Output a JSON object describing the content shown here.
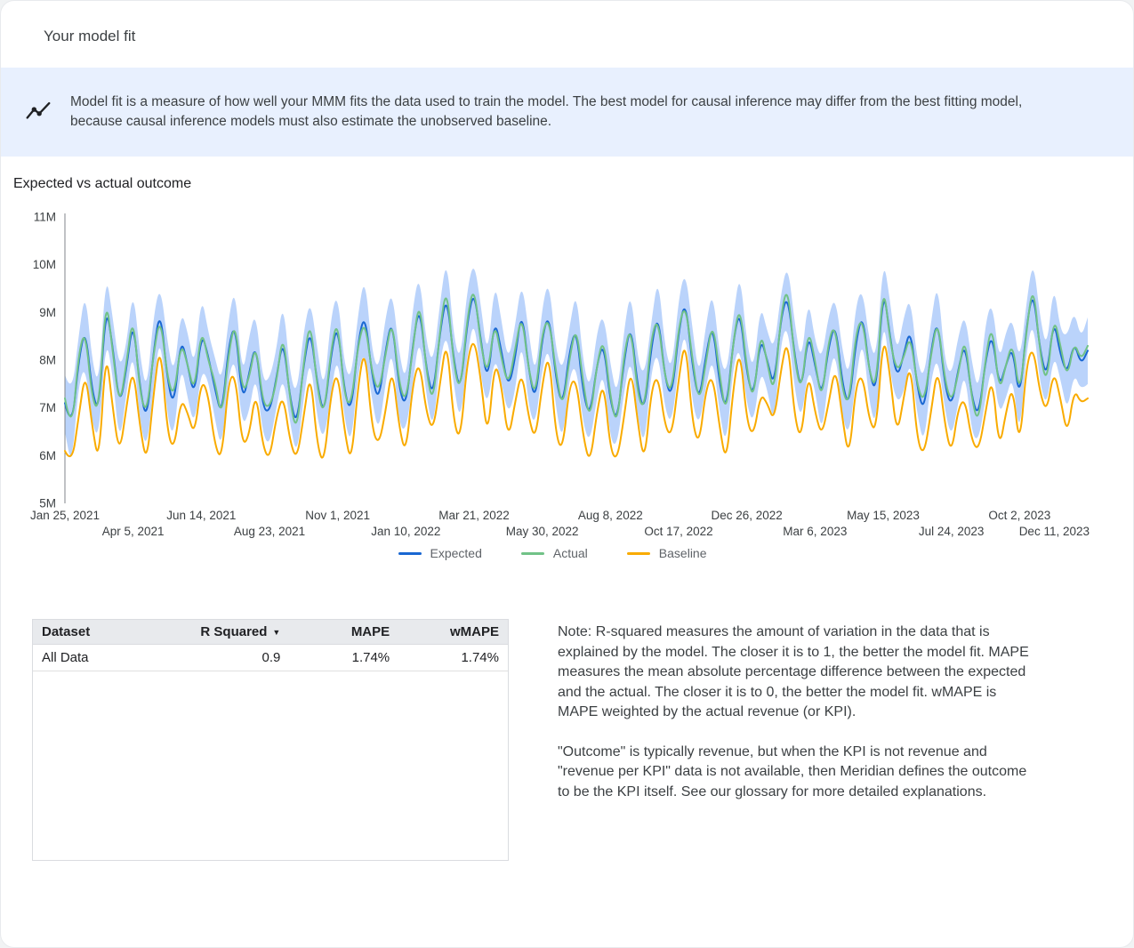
{
  "page": {
    "title": "Your model fit",
    "banner": {
      "icon": "insights-icon",
      "text": "Model fit is a measure of how well your MMM fits the data used to train the model. The best model for causal inference may differ from the best fitting model, because causal inference models must also estimate the unobserved baseline."
    },
    "section_title": "Expected vs actual outcome"
  },
  "chart_data": {
    "type": "line",
    "title": "Expected vs actual outcome",
    "ylim": [
      5,
      11
    ],
    "unit": "M",
    "legend_position": "bottom-center",
    "grid": false,
    "y_ticks": [
      {
        "value": 5,
        "label": "5M"
      },
      {
        "value": 6,
        "label": "6M"
      },
      {
        "value": 7,
        "label": "7M"
      },
      {
        "value": 8,
        "label": "8M"
      },
      {
        "value": 9,
        "label": "9M"
      },
      {
        "value": 10,
        "label": "10M"
      },
      {
        "value": 11,
        "label": "11M"
      }
    ],
    "x_ticks": [
      {
        "label": "Jan 25, 2021",
        "index": 0
      },
      {
        "label": "Apr 5, 2021",
        "index": 10
      },
      {
        "label": "Jun 14, 2021",
        "index": 20
      },
      {
        "label": "Aug 23, 2021",
        "index": 30
      },
      {
        "label": "Nov 1, 2021",
        "index": 40
      },
      {
        "label": "Jan 10, 2022",
        "index": 50
      },
      {
        "label": "Mar 21, 2022",
        "index": 60
      },
      {
        "label": "May 30, 2022",
        "index": 70
      },
      {
        "label": "Aug 8, 2022",
        "index": 80
      },
      {
        "label": "Oct 17, 2022",
        "index": 90
      },
      {
        "label": "Dec 26, 2022",
        "index": 100
      },
      {
        "label": "Mar 6, 2023",
        "index": 110
      },
      {
        "label": "May 15, 2023",
        "index": 120
      },
      {
        "label": "Jul 24, 2023",
        "index": 130
      },
      {
        "label": "Oct 2, 2023",
        "index": 140
      },
      {
        "label": "Dec 11, 2023",
        "index": 150
      }
    ],
    "series": [
      {
        "name": "Expected",
        "color": "#1967d2",
        "values": [
          7.1,
          6.5,
          8.0,
          8.7,
          7.3,
          6.9,
          9.2,
          8.3,
          7.0,
          7.8,
          8.9,
          7.4,
          6.7,
          8.2,
          9.1,
          7.6,
          7.0,
          8.5,
          7.9,
          7.2,
          8.6,
          8.1,
          7.4,
          6.8,
          8.3,
          8.8,
          7.1,
          7.7,
          8.4,
          7.0,
          6.9,
          7.6,
          8.5,
          7.2,
          6.6,
          7.9,
          8.7,
          7.5,
          6.8,
          8.1,
          8.8,
          7.3,
          6.9,
          8.4,
          9.0,
          7.7,
          7.1,
          8.2,
          8.9,
          7.4,
          7.0,
          8.3,
          9.2,
          7.8,
          7.2,
          8.6,
          9.4,
          8.0,
          7.3,
          8.8,
          9.5,
          8.4,
          7.5,
          8.9,
          8.2,
          7.4,
          8.0,
          9.1,
          7.8,
          7.1,
          8.5,
          9.0,
          7.6,
          7.0,
          8.2,
          8.7,
          7.3,
          6.8,
          7.9,
          8.4,
          7.1,
          6.7,
          8.0,
          8.8,
          7.4,
          6.9,
          8.3,
          9.0,
          7.6,
          7.2,
          8.6,
          9.3,
          7.9,
          7.1,
          8.1,
          8.8,
          7.5,
          6.9,
          8.4,
          9.1,
          7.7,
          7.2,
          8.5,
          8.0,
          7.4,
          8.9,
          9.4,
          8.1,
          7.3,
          8.6,
          7.9,
          7.2,
          8.3,
          8.8,
          7.5,
          7.0,
          8.4,
          9.0,
          7.7,
          7.3,
          9.6,
          8.5,
          7.6,
          8.1,
          8.7,
          7.4,
          6.9,
          8.2,
          8.9,
          7.5,
          7.0,
          7.8,
          8.4,
          7.2,
          6.8,
          8.0,
          8.6,
          7.4,
          7.9,
          8.3,
          7.1,
          8.7,
          9.5,
          8.2,
          7.6,
          8.9,
          8.1,
          7.7,
          8.4,
          7.9,
          8.2
        ]
      },
      {
        "name": "Actual",
        "color": "#71c287",
        "values": [
          7.2,
          6.4,
          8.15,
          8.65,
          7.15,
          6.95,
          9.4,
          8.2,
          7.0,
          7.9,
          9.0,
          7.3,
          6.85,
          8.15,
          8.95,
          7.65,
          7.2,
          8.4,
          7.9,
          7.3,
          8.7,
          8.0,
          7.55,
          6.75,
          8.15,
          8.85,
          7.3,
          7.6,
          8.4,
          7.1,
          7.0,
          7.5,
          8.65,
          7.15,
          6.45,
          7.95,
          8.9,
          7.4,
          6.8,
          8.2,
          8.9,
          7.2,
          7.05,
          8.35,
          8.85,
          7.75,
          7.3,
          8.1,
          8.9,
          7.5,
          7.1,
          8.2,
          9.35,
          7.75,
          7.05,
          8.65,
          9.6,
          7.9,
          7.3,
          8.9,
          9.6,
          8.3,
          7.65,
          8.85,
          8.05,
          7.45,
          8.2,
          9.0,
          7.8,
          7.2,
          8.6,
          8.9,
          7.75,
          6.95,
          8.05,
          8.75,
          7.5,
          6.7,
          7.9,
          8.5,
          7.2,
          6.6,
          8.15,
          8.75,
          7.25,
          6.95,
          8.5,
          8.9,
          7.6,
          7.3,
          8.7,
          9.2,
          8.05,
          7.05,
          7.95,
          8.85,
          7.7,
          6.8,
          8.4,
          9.2,
          7.8,
          7.1,
          8.65,
          7.95,
          7.25,
          8.95,
          9.6,
          8.0,
          7.3,
          8.7,
          8.0,
          7.1,
          8.45,
          8.75,
          7.35,
          7.05,
          8.6,
          8.9,
          7.7,
          7.4,
          9.7,
          8.4,
          7.75,
          8.05,
          8.55,
          7.45,
          7.1,
          8.1,
          8.9,
          7.6,
          7.1,
          7.7,
          8.55,
          7.15,
          6.65,
          8.05,
          8.8,
          7.3,
          7.9,
          8.4,
          7.2,
          8.6,
          9.65,
          8.15,
          7.45,
          8.95,
          8.3,
          7.6,
          8.4,
          8.0,
          8.3
        ]
      },
      {
        "name": "Baseline",
        "color": "#f9ab00",
        "values": [
          6.1,
          5.8,
          6.8,
          7.8,
          6.6,
          5.8,
          8.3,
          7.0,
          6.0,
          7.0,
          7.9,
          6.6,
          5.8,
          7.3,
          8.4,
          6.5,
          6.1,
          7.2,
          6.9,
          6.4,
          7.6,
          7.3,
          6.2,
          5.9,
          7.6,
          7.7,
          6.2,
          6.4,
          7.4,
          6.2,
          5.9,
          6.8,
          7.3,
          6.3,
          5.9,
          6.8,
          7.8,
          6.2,
          5.8,
          7.3,
          7.8,
          6.5,
          5.8,
          7.5,
          8.3,
          6.6,
          6.2,
          6.9,
          7.9,
          6.6,
          6.0,
          7.5,
          8.0,
          6.9,
          6.5,
          7.5,
          8.5,
          6.7,
          6.3,
          8.0,
          8.5,
          7.6,
          6.3,
          8.0,
          7.5,
          6.3,
          7.1,
          7.8,
          6.8,
          6.3,
          7.5,
          8.2,
          6.4,
          6.1,
          7.5,
          7.6,
          6.4,
          5.8,
          6.9,
          7.6,
          6.1,
          5.9,
          6.8,
          7.9,
          6.7,
          5.8,
          7.4,
          7.7,
          6.6,
          6.4,
          7.6,
          8.5,
          6.7,
          6.2,
          7.4,
          7.7,
          6.6,
          5.8,
          7.4,
          8.3,
          6.7,
          6.4,
          7.3,
          7.1,
          6.7,
          7.8,
          8.5,
          6.8,
          6.3,
          7.8,
          6.9,
          6.4,
          7.1,
          7.9,
          6.8,
          5.9,
          7.5,
          7.7,
          6.7,
          6.5,
          8.6,
          7.7,
          6.4,
          7.2,
          8.0,
          6.3,
          6.0,
          6.9,
          7.9,
          6.7,
          6.0,
          7.0,
          7.2,
          6.3,
          6.1,
          6.9,
          7.7,
          6.1,
          6.9,
          7.5,
          6.1,
          7.9,
          8.3,
          7.3,
          6.9,
          7.8,
          7.2,
          6.4,
          7.4,
          7.1,
          7.2
        ]
      }
    ],
    "band": {
      "series_name": "Expected",
      "label": "credible interval",
      "color": "#aecbfa",
      "halfwidth_pattern": [
        0.6,
        0.75,
        0.5,
        0.8,
        0.65,
        0.55,
        0.7,
        0.6,
        0.8,
        0.5,
        0.65,
        0.7
      ]
    }
  },
  "table": {
    "columns": [
      {
        "label": "Dataset",
        "align": "left",
        "has_sort_arrow": false
      },
      {
        "label": "R Squared",
        "align": "right",
        "has_sort_arrow": true
      },
      {
        "label": "MAPE",
        "align": "right",
        "has_sort_arrow": false
      },
      {
        "label": "wMAPE",
        "align": "right",
        "has_sort_arrow": false
      }
    ],
    "rows": [
      [
        "All Data",
        "0.9",
        "1.74%",
        "1.74%"
      ]
    ]
  },
  "notes": {
    "paragraph1": "Note: R-squared measures the amount of variation in the data that is explained by the model. The closer it is to 1, the better the model fit. MAPE measures the mean absolute percentage difference between the expected and the actual. The closer it is to 0, the better the model fit. wMAPE is MAPE weighted by the actual revenue (or KPI).",
    "paragraph2": "\"Outcome\" is typically revenue, but when the KPI is not revenue and \"revenue per KPI\" data is not available, then Meridian defines the outcome to be the KPI itself. See our glossary for more detailed explanations."
  }
}
